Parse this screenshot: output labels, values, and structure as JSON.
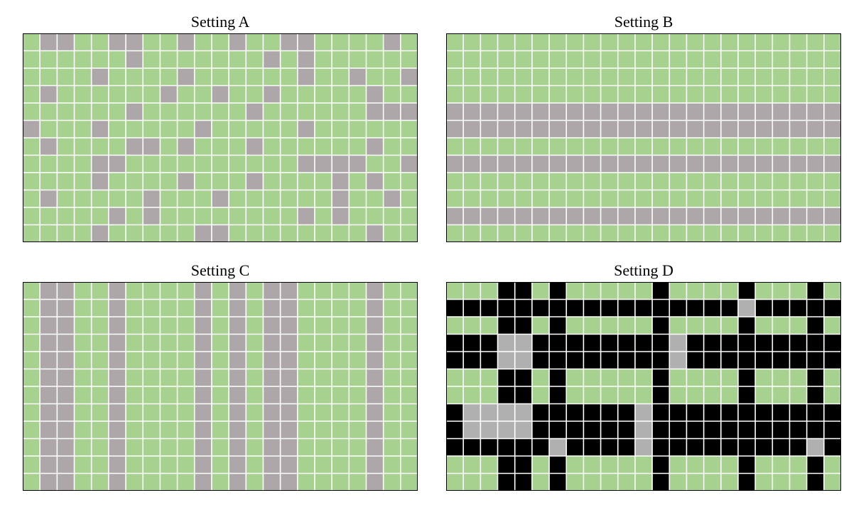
{
  "colors": {
    "green": "#a6d18f",
    "gray": "#ada7a9",
    "light_gray": "#b0b0b0",
    "black": "#000000",
    "line": "#ffffff",
    "border": "#000000"
  },
  "grid": {
    "rows": 12,
    "cols": 23
  },
  "panels": [
    {
      "title": "Setting A",
      "legend_key": "G=green cell, S=gray cell, K=black cell, L=light gray cell",
      "cells": [
        "GSSGGSSGGSGGSGGSSGGGGSG",
        "GGGGGGSGGGGGGGSGSGGGGGG",
        "GGGGSGGGGSGGGGGGSGGSGGS",
        "GSGGGGGGSGGSGGSGGGGGSGG",
        "GGGGGGSGGGGGGSGGGGGGSSS",
        "SGGGSGGGGGSGGGGGSGGGGGG",
        "GSGGGGSSGSGGGSGGGGGGSGG",
        "GGGGSSGGGGGGGGGGSSSSGGS",
        "GGGGSGGGGSGGGSGGGGSGSGG",
        "GSGGGGGSGGGSGGGGGGSGGSG",
        "GGGGGSGSGGGGGGGGSGSGGGG",
        "GGGGSGGGGGSSGGGGGGGGSGG"
      ]
    },
    {
      "title": "Setting B",
      "cells": [
        "GGGGGGGGGGGGGGGGGGGGGGG",
        "GGGGGGGGGGGGGGGGGGGGGGG",
        "GGGGGGGGGGGGGGGGGGGGGGG",
        "GGGGGGGGGGGGGGGGGGGGGGG",
        "SSSSSSSSSSSSSSSSSSSSSSS",
        "SSSSSSSSSSSSSSSSSSSSSSS",
        "GGGGGGGGGGGGGGGGGGGGGGG",
        "SSSSSSSSSSSSSSSSSSSSSSS",
        "GGGGGGGGGGGGGGGGGGGGGGG",
        "GGGGGGGGGGGGGGGGGGGGGGG",
        "SSSSSSSSSSSSSSSSSSSSSSS",
        "GGGGGGGGGGGGGGGGGGGGGGG"
      ]
    },
    {
      "title": "Setting C",
      "cells": [
        "GSSGGSGGGGSGSGSSGGGGSGG",
        "GSSGGSGGGGSGSGSSGGGGSGG",
        "GSSGGSGGGGSGSGSSGGGGSGG",
        "GSSGGSGGGGSGSGSSGGGGSGG",
        "GSSGGSGGGGSGSGSSGGGGSGG",
        "GSSGGSGGGGSGSGSSGGGGSGG",
        "GSSGGSGGGGSGSGSSGGGGSGG",
        "GSSGGSGGGGSGSGSSGGGGSGG",
        "GSSGGSGGGGSGSGSSGGGGSGG",
        "GSSGGSGGGGSGSGSSGGGGSGG",
        "GSSGGSGGGGSGSGSSGGGGSGG",
        "GSSGGSGGGGSGSGSSGGGGSGG"
      ]
    },
    {
      "title": "Setting D",
      "cells": [
        "GGGKKGKGGGGGKGGGGKGGGKG",
        "KKKKKKKKKKKKKKKKKLKKKKK",
        "GGGKKGKGGGGGKGGGGKGGGKG",
        "KKKLLKKKKKKKKLKKKKKKKKK",
        "KKKLLKKKKKKKKLKKKKKKKKK",
        "GGGKKGKGGGGGKGGGGKGGGKG",
        "GGGKKGKGGGGGKGGGGKGGGKG",
        "KLLLLKKKKKKLKKKKKKKKKKK",
        "KLLLLKKKKKKLKKKKKKKKKKK",
        "KKKKKKLKKKKLKKKKKKKKKLK",
        "GGGKKGKGGGGGKGGGGKGGGKG",
        "GGGKKGKGGGGGKGGGGKGGGKG"
      ]
    }
  ]
}
